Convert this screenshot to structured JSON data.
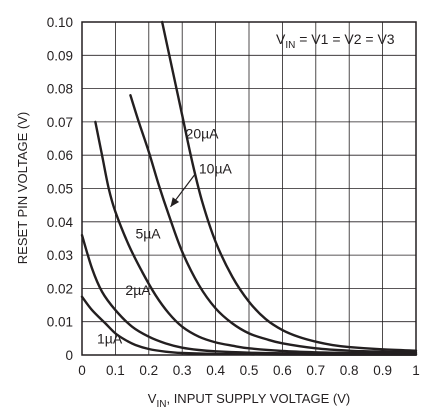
{
  "chart_data": {
    "type": "line",
    "xlabel": {
      "main": "V",
      "sub": "IN",
      "rest": ", INPUT SUPPLY VOLTAGE (V)"
    },
    "ylabel": "RESET PIN VOLTAGE (V)",
    "xlim": [
      0,
      1
    ],
    "ylim": [
      0,
      0.1
    ],
    "grid": true,
    "x_ticks": [
      "0",
      "0.1",
      "0.2",
      "0.3",
      "0.4",
      "0.5",
      "0.6",
      "0.7",
      "0.8",
      "0.9",
      "1"
    ],
    "y_ticks": [
      "0",
      "0.01",
      "0.02",
      "0.03",
      "0.04",
      "0.05",
      "0.06",
      "0.07",
      "0.08",
      "0.09",
      "0.10"
    ],
    "annotation": {
      "main": "V",
      "sub": "IN",
      "rest": " = V1 = V2 = V3"
    },
    "series": [
      {
        "name": "1µA",
        "x": [
          0.0,
          0.03,
          0.07,
          0.1,
          0.13,
          0.16,
          0.2,
          0.25,
          0.3,
          0.4,
          0.5,
          0.6,
          0.7,
          0.8,
          1.0
        ],
        "y": [
          0.0175,
          0.0135,
          0.0095,
          0.0065,
          0.0045,
          0.003,
          0.0018,
          0.001,
          0.0006,
          0.0003,
          0.0002,
          0.00015,
          0.0001,
          0.0001,
          0.0001
        ]
      },
      {
        "name": "2µA",
        "x": [
          0.0,
          0.03,
          0.06,
          0.1,
          0.15,
          0.2,
          0.25,
          0.3,
          0.35,
          0.4,
          0.5,
          0.6,
          0.7,
          0.8,
          1.0
        ],
        "y": [
          0.036,
          0.026,
          0.019,
          0.0135,
          0.0085,
          0.0055,
          0.0035,
          0.0022,
          0.0015,
          0.0011,
          0.0007,
          0.0005,
          0.0004,
          0.0003,
          0.0002
        ]
      },
      {
        "name": "5µA",
        "x": [
          0.04,
          0.06,
          0.08,
          0.1,
          0.14,
          0.18,
          0.22,
          0.26,
          0.3,
          0.35,
          0.4,
          0.45,
          0.5,
          0.6,
          0.7,
          0.8,
          0.9,
          1.0
        ],
        "y": [
          0.07,
          0.06,
          0.05,
          0.043,
          0.033,
          0.025,
          0.018,
          0.0125,
          0.0085,
          0.0055,
          0.0038,
          0.0028,
          0.002,
          0.0012,
          0.0008,
          0.0006,
          0.0005,
          0.0004
        ]
      },
      {
        "name": "10µA",
        "x": [
          0.145,
          0.17,
          0.2,
          0.23,
          0.26,
          0.3,
          0.35,
          0.4,
          0.45,
          0.5,
          0.55,
          0.6,
          0.7,
          0.8,
          0.9,
          1.0
        ],
        "y": [
          0.078,
          0.07,
          0.061,
          0.051,
          0.042,
          0.031,
          0.021,
          0.014,
          0.0095,
          0.0065,
          0.0048,
          0.0035,
          0.002,
          0.0013,
          0.001,
          0.0008
        ]
      },
      {
        "name": "20µA",
        "x": [
          0.24,
          0.27,
          0.3,
          0.33,
          0.36,
          0.4,
          0.45,
          0.5,
          0.55,
          0.6,
          0.65,
          0.7,
          0.75,
          0.8,
          0.9,
          1.0
        ],
        "y": [
          0.1,
          0.086,
          0.072,
          0.058,
          0.046,
          0.034,
          0.0235,
          0.016,
          0.0108,
          0.0075,
          0.0054,
          0.004,
          0.003,
          0.0024,
          0.0017,
          0.0013
        ]
      }
    ],
    "curve_labels": [
      {
        "text": "20µA",
        "x": 0.31,
        "y": 0.065
      },
      {
        "text": "10µA",
        "x": 0.35,
        "y": 0.0545
      },
      {
        "text": "5µA",
        "x": 0.16,
        "y": 0.035
      },
      {
        "text": "2µA",
        "x": 0.13,
        "y": 0.018
      },
      {
        "text": "1µA",
        "x": 0.045,
        "y": 0.0035
      }
    ],
    "arrow": {
      "from": [
        0.34,
        0.0545
      ],
      "to": [
        0.265,
        0.0445
      ]
    }
  },
  "colors": {
    "line": "#231f20",
    "grid": "#231f20",
    "background": "#ffffff"
  }
}
